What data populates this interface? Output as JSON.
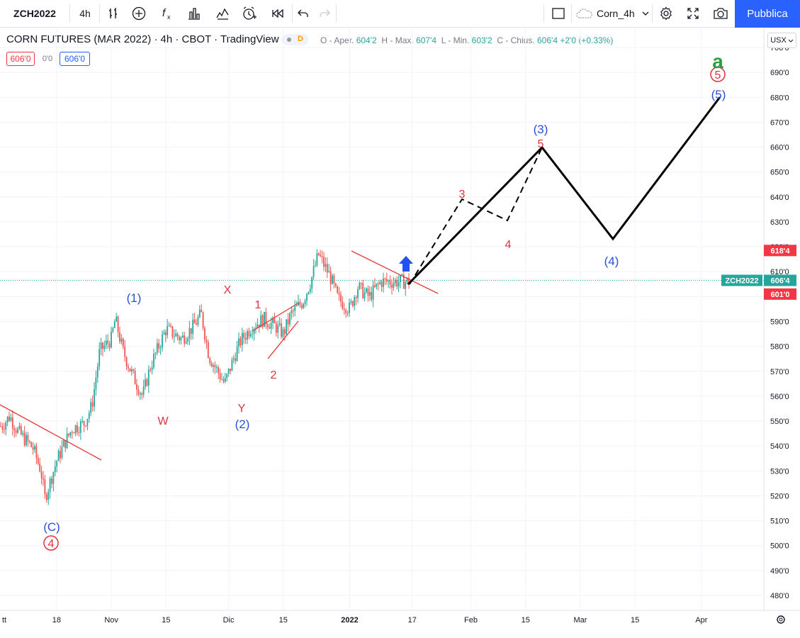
{
  "toolbar": {
    "symbol": "ZCH2022",
    "interval": "4h",
    "layout_name": "Corn_4h",
    "publish_label": "Pubblica",
    "icons": [
      "bar-style-icon",
      "add-indicator-icon",
      "fx-icon",
      "template-icon",
      "compare-icon",
      "alert-icon",
      "replay-icon",
      "undo-icon",
      "redo-icon",
      "layout-icon",
      "cloud-icon",
      "gear-icon",
      "fullscreen-icon",
      "camera-icon"
    ]
  },
  "legend": {
    "title": "CORN FUTURES (MAR 2022) · 4h · CBOT · TradingView",
    "status_letter": "D",
    "ohlc": {
      "open_label": "O - Aper.",
      "open": "604'2",
      "high_label": "H - Max.",
      "high": "607'4",
      "low_label": "L - Min.",
      "low": "603'2",
      "close_label": "C - Chius.",
      "close": "606'4",
      "change": "+2'0 (+0.33%)"
    },
    "bid": "606'0",
    "spread": "0'0",
    "ask": "606'0"
  },
  "price_axis": {
    "currency": "USX",
    "ticks": [
      "700'0",
      "690'0",
      "680'0",
      "670'0",
      "660'0",
      "650'0",
      "640'0",
      "630'0",
      "620'0",
      "610'0",
      "600'0",
      "590'0",
      "580'0",
      "570'0",
      "560'0",
      "550'0",
      "540'0",
      "530'0",
      "520'0",
      "510'0",
      "500'0",
      "490'0",
      "480'0"
    ],
    "labels": [
      {
        "text": "618'4",
        "color": "#f23645",
        "price": 618.5
      },
      {
        "symbol": "ZCH2022",
        "text": "606'4",
        "color": "#26a69a",
        "price": 606.5
      },
      {
        "text": "601'0",
        "color": "#f23645",
        "price": 601
      }
    ]
  },
  "time_axis": {
    "ticks": [
      "tt",
      "18",
      "Nov",
      "15",
      "Dic",
      "15",
      "2022",
      "17",
      "Feb",
      "15",
      "Mar",
      "15",
      "Apr"
    ],
    "bold_tick": "2022"
  },
  "colors": {
    "up": "#26a69a",
    "down": "#ef5350",
    "wave_blue": "#2a4fd6",
    "wave_red": "#e0313b",
    "trend": "#e53935",
    "accent": "#2962ff",
    "green": "#2e9e44"
  },
  "chart_data": {
    "type": "candlestick",
    "title": "CORN FUTURES (MAR 2022)",
    "interval": "4h",
    "ylim": [
      476,
      704
    ],
    "price_path": [
      [
        "2021-10-04",
        548
      ],
      [
        "2021-10-06",
        552
      ],
      [
        "2021-10-08",
        546
      ],
      [
        "2021-10-12",
        539
      ],
      [
        "2021-10-14",
        530
      ],
      [
        "2021-10-15",
        519
      ],
      [
        "2021-10-18",
        534
      ],
      [
        "2021-10-20",
        541
      ],
      [
        "2021-10-22",
        547
      ],
      [
        "2021-10-25",
        549
      ],
      [
        "2021-10-27",
        556
      ],
      [
        "2021-10-29",
        578
      ],
      [
        "2021-11-01",
        583
      ],
      [
        "2021-11-02",
        591
      ],
      [
        "2021-11-04",
        578
      ],
      [
        "2021-11-06",
        570
      ],
      [
        "2021-11-09",
        560
      ],
      [
        "2021-11-11",
        572
      ],
      [
        "2021-11-15",
        587
      ],
      [
        "2021-11-17",
        585
      ],
      [
        "2021-11-19",
        583
      ],
      [
        "2021-11-22",
        588
      ],
      [
        "2021-11-24",
        593
      ],
      [
        "2021-11-26",
        576
      ],
      [
        "2021-11-30",
        565
      ],
      [
        "2021-12-02",
        574
      ],
      [
        "2021-12-04",
        582
      ],
      [
        "2021-12-07",
        588
      ],
      [
        "2021-12-10",
        591
      ],
      [
        "2021-12-13",
        588
      ],
      [
        "2021-12-15",
        585
      ],
      [
        "2021-12-17",
        593
      ],
      [
        "2021-12-20",
        598
      ],
      [
        "2021-12-22",
        606
      ],
      [
        "2021-12-24",
        617
      ],
      [
        "2021-12-27",
        608
      ],
      [
        "2021-12-29",
        599
      ],
      [
        "2022-01-01",
        595
      ],
      [
        "2022-01-03",
        604
      ],
      [
        "2022-01-05",
        601
      ],
      [
        "2022-01-06",
        600
      ],
      [
        "2022-01-09",
        606
      ]
    ],
    "wave_labels": [
      {
        "text": "(1)",
        "color": "#2a4fd6"
      },
      {
        "text": "(2)",
        "color": "#2a4fd6"
      },
      {
        "text": "(3)",
        "color": "#2a4fd6"
      },
      {
        "text": "(4)",
        "color": "#2a4fd6"
      },
      {
        "text": "(5)",
        "color": "#2a4fd6"
      },
      {
        "text": "(C)",
        "color": "#2a4fd6"
      },
      {
        "text": "X",
        "color": "#e0313b"
      },
      {
        "text": "W",
        "color": "#e0313b"
      },
      {
        "text": "Y",
        "color": "#e0313b"
      },
      {
        "text": "1",
        "color": "#e0313b"
      },
      {
        "text": "2",
        "color": "#e0313b"
      },
      {
        "text": "3",
        "color": "#e0313b"
      },
      {
        "text": "4",
        "color": "#e0313b"
      },
      {
        "text": "5",
        "color": "#e0313b"
      },
      {
        "text": "4",
        "color": "#e0313b",
        "circled": true
      },
      {
        "text": "5",
        "color": "#e0313b",
        "circled": true
      },
      {
        "text": "a",
        "color": "#2e9e44"
      }
    ]
  }
}
